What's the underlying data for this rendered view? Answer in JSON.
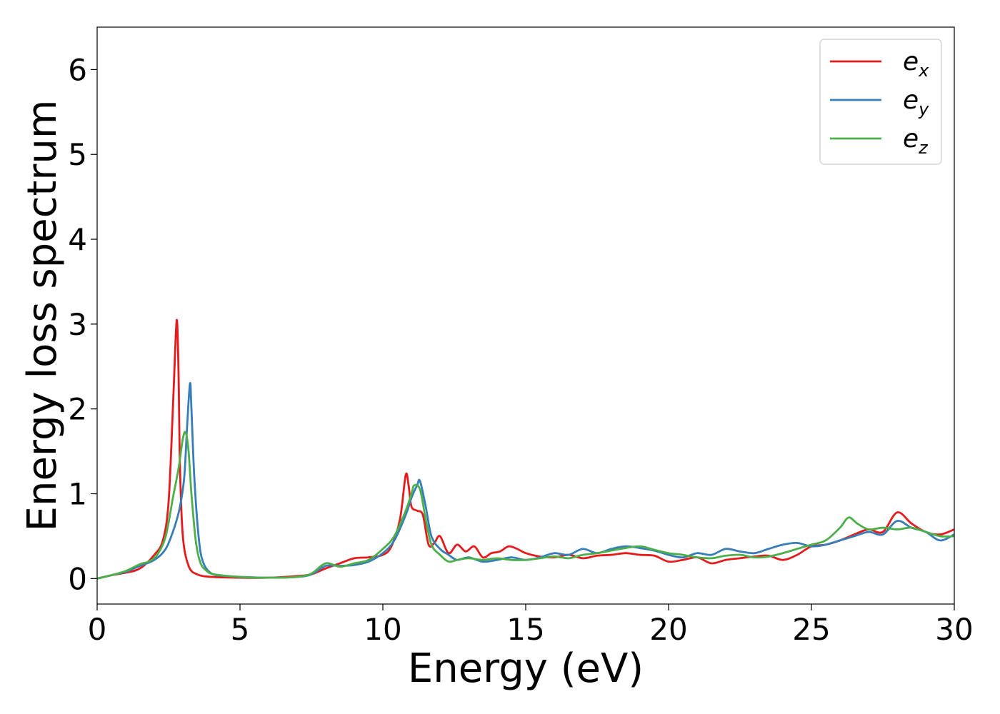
{
  "chart_data": {
    "type": "line",
    "title": "",
    "xlabel": "Energy (eV)",
    "ylabel": "Energy loss spectrum",
    "xlim": [
      0,
      30
    ],
    "ylim": [
      -0.3,
      6.5
    ],
    "xticks": [
      0,
      5,
      10,
      15,
      20,
      25,
      30
    ],
    "yticks": [
      0,
      1,
      2,
      3,
      4,
      5,
      6
    ],
    "grid": false,
    "legend_position": "top-right",
    "series": [
      {
        "name": "e_x",
        "label_main": "e",
        "label_sub": "x",
        "color": "#e41a1c",
        "x": [
          0,
          0.5,
          1.0,
          1.5,
          2.0,
          2.3,
          2.5,
          2.65,
          2.75,
          2.8,
          2.85,
          2.9,
          3.0,
          3.2,
          3.5,
          4.0,
          5.0,
          6.0,
          7.0,
          7.5,
          8.0,
          8.5,
          9.0,
          9.5,
          10.0,
          10.3,
          10.6,
          10.8,
          10.9,
          11.0,
          11.2,
          11.4,
          11.6,
          11.8,
          12.0,
          12.3,
          12.6,
          12.9,
          13.2,
          13.5,
          13.8,
          14.1,
          14.4,
          14.7,
          15.0,
          15.5,
          16.0,
          16.5,
          17.0,
          17.5,
          18.0,
          18.5,
          19.0,
          19.5,
          20.0,
          20.5,
          21.0,
          21.5,
          22.0,
          22.5,
          23.0,
          23.5,
          24.0,
          24.5,
          25.0,
          25.5,
          26.0,
          26.5,
          27.0,
          27.5,
          28.0,
          28.5,
          29.0,
          29.5,
          30.0
        ],
        "y": [
          0,
          0.04,
          0.07,
          0.12,
          0.28,
          0.45,
          0.9,
          2.0,
          2.85,
          3.02,
          2.4,
          1.3,
          0.5,
          0.15,
          0.05,
          0.02,
          0.01,
          0.01,
          0.03,
          0.05,
          0.12,
          0.18,
          0.24,
          0.25,
          0.28,
          0.38,
          0.7,
          1.22,
          1.1,
          0.85,
          0.8,
          0.75,
          0.4,
          0.42,
          0.5,
          0.3,
          0.4,
          0.32,
          0.38,
          0.25,
          0.3,
          0.32,
          0.38,
          0.35,
          0.3,
          0.26,
          0.25,
          0.28,
          0.24,
          0.27,
          0.28,
          0.3,
          0.28,
          0.27,
          0.2,
          0.22,
          0.25,
          0.18,
          0.22,
          0.24,
          0.26,
          0.27,
          0.22,
          0.28,
          0.38,
          0.4,
          0.45,
          0.52,
          0.58,
          0.55,
          0.78,
          0.65,
          0.55,
          0.52,
          0.58
        ]
      },
      {
        "name": "e_y",
        "label_main": "e",
        "label_sub": "y",
        "color": "#377eb8",
        "x": [
          0,
          0.5,
          1.0,
          1.5,
          2.0,
          2.4,
          2.7,
          2.9,
          3.05,
          3.15,
          3.25,
          3.3,
          3.4,
          3.55,
          3.7,
          4.0,
          4.5,
          5.0,
          6.0,
          7.0,
          7.5,
          8.0,
          8.5,
          9.0,
          9.5,
          10.0,
          10.4,
          10.8,
          11.0,
          11.2,
          11.3,
          11.5,
          11.7,
          12.0,
          12.3,
          12.6,
          13.0,
          13.5,
          14.0,
          14.5,
          15.0,
          15.5,
          16.0,
          16.5,
          17.0,
          17.5,
          18.0,
          18.5,
          19.0,
          19.5,
          20.0,
          20.5,
          21.0,
          21.5,
          22.0,
          22.5,
          23.0,
          23.5,
          24.0,
          24.5,
          25.0,
          25.5,
          26.0,
          26.5,
          27.0,
          27.5,
          28.0,
          28.5,
          29.0,
          29.5,
          30.0
        ],
        "y": [
          0,
          0.04,
          0.08,
          0.15,
          0.22,
          0.35,
          0.6,
          0.85,
          1.2,
          1.8,
          2.3,
          2.0,
          1.2,
          0.5,
          0.2,
          0.06,
          0.03,
          0.02,
          0.01,
          0.02,
          0.05,
          0.15,
          0.15,
          0.16,
          0.2,
          0.3,
          0.45,
          0.75,
          0.95,
          1.1,
          1.15,
          0.85,
          0.5,
          0.35,
          0.28,
          0.22,
          0.25,
          0.2,
          0.22,
          0.25,
          0.22,
          0.25,
          0.3,
          0.28,
          0.35,
          0.3,
          0.35,
          0.38,
          0.36,
          0.33,
          0.28,
          0.25,
          0.3,
          0.28,
          0.35,
          0.32,
          0.3,
          0.35,
          0.4,
          0.42,
          0.38,
          0.4,
          0.45,
          0.5,
          0.55,
          0.52,
          0.68,
          0.6,
          0.55,
          0.45,
          0.52
        ]
      },
      {
        "name": "e_z",
        "label_main": "e",
        "label_sub": "z",
        "color": "#4daf4a",
        "x": [
          0,
          0.5,
          1.0,
          1.5,
          1.8,
          2.1,
          2.4,
          2.65,
          2.85,
          3.0,
          3.1,
          3.2,
          3.3,
          3.45,
          3.6,
          3.8,
          4.1,
          5.0,
          6.0,
          7.0,
          7.5,
          8.0,
          8.5,
          9.0,
          9.5,
          10.0,
          10.4,
          10.8,
          11.0,
          11.1,
          11.3,
          11.5,
          11.7,
          12.0,
          12.3,
          12.6,
          13.0,
          13.5,
          14.0,
          14.5,
          15.0,
          15.5,
          16.0,
          16.5,
          17.0,
          17.5,
          18.0,
          18.5,
          19.0,
          19.5,
          20.0,
          20.5,
          21.0,
          21.5,
          22.0,
          22.5,
          23.0,
          23.5,
          24.0,
          24.5,
          25.0,
          25.5,
          26.0,
          26.3,
          26.6,
          27.0,
          27.5,
          28.0,
          28.5,
          29.0,
          29.5,
          30.0
        ],
        "y": [
          0,
          0.04,
          0.09,
          0.17,
          0.2,
          0.28,
          0.5,
          0.95,
          1.3,
          1.65,
          1.72,
          1.5,
          1.0,
          0.45,
          0.2,
          0.1,
          0.05,
          0.02,
          0.01,
          0.02,
          0.06,
          0.18,
          0.14,
          0.18,
          0.22,
          0.35,
          0.5,
          0.8,
          1.0,
          1.1,
          1.05,
          0.7,
          0.4,
          0.28,
          0.2,
          0.22,
          0.24,
          0.22,
          0.24,
          0.22,
          0.22,
          0.24,
          0.26,
          0.24,
          0.28,
          0.3,
          0.33,
          0.36,
          0.38,
          0.34,
          0.3,
          0.28,
          0.25,
          0.24,
          0.27,
          0.28,
          0.25,
          0.26,
          0.3,
          0.35,
          0.4,
          0.45,
          0.6,
          0.72,
          0.65,
          0.58,
          0.6,
          0.58,
          0.6,
          0.55,
          0.5,
          0.5
        ]
      }
    ]
  }
}
